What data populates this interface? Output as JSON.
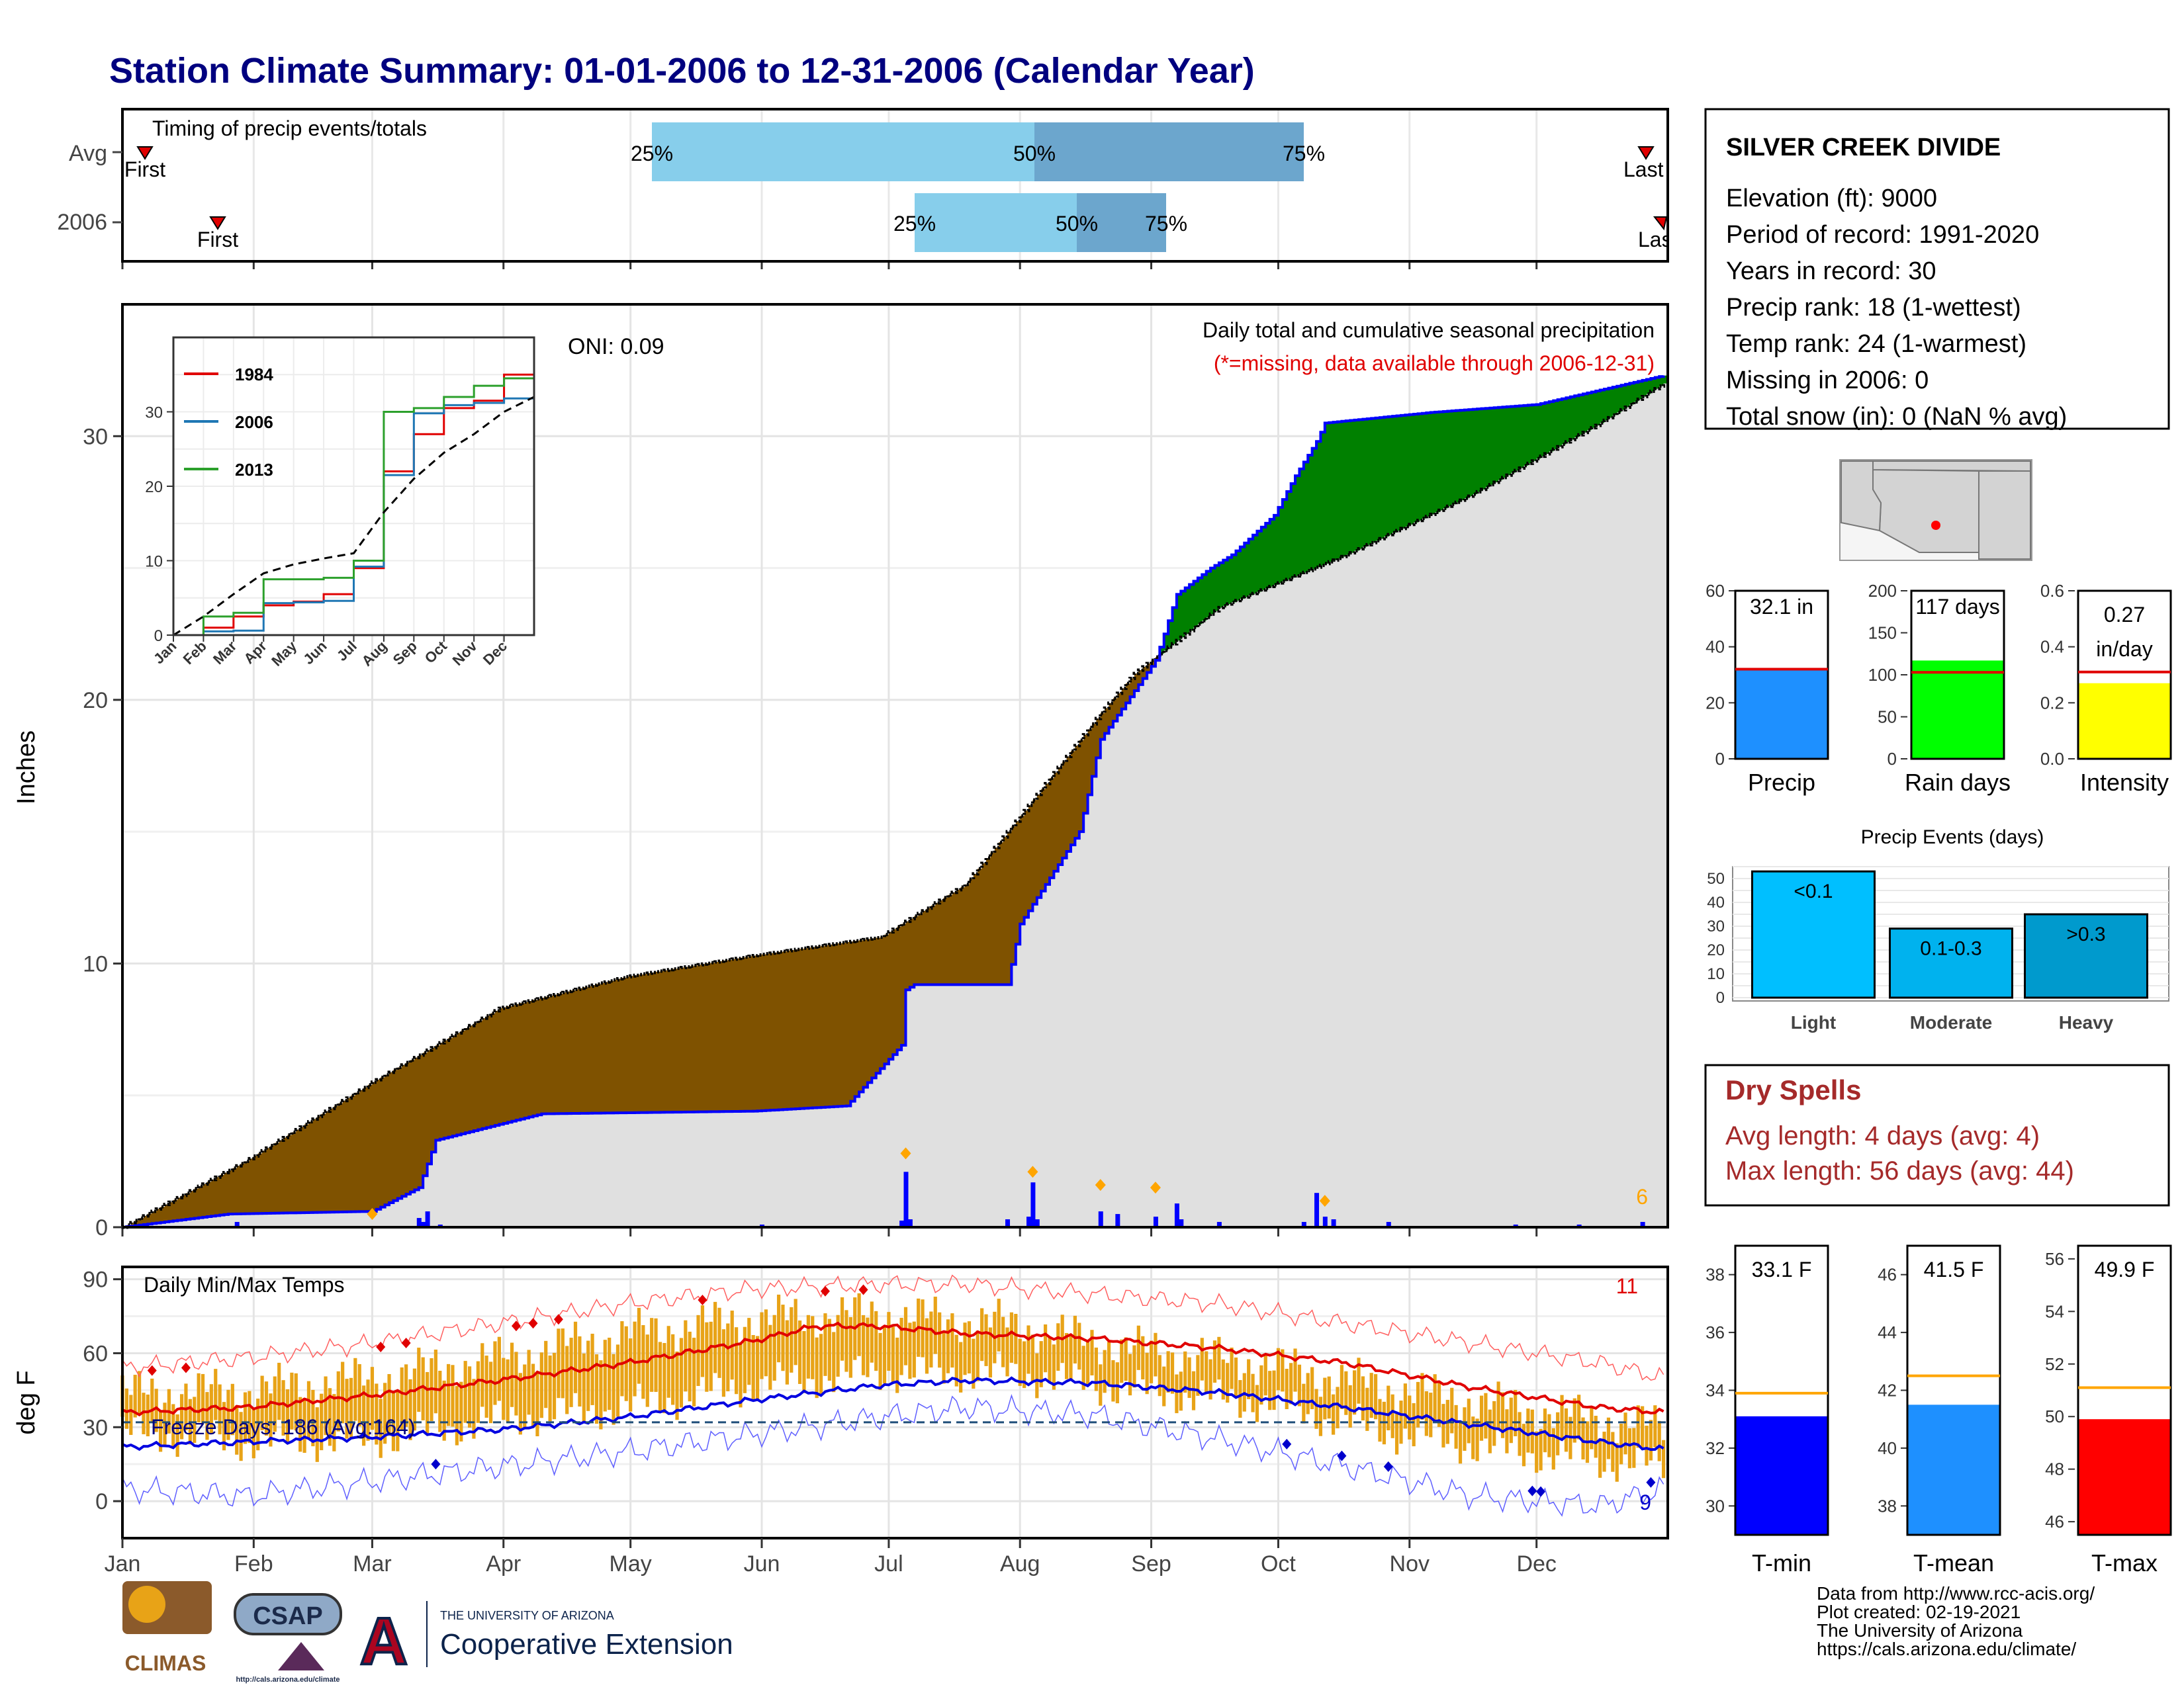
{
  "title": "Station Climate Summary: 01-01-2006 to 12-31-2006 (Calendar Year)",
  "colors": {
    "title": "#00007f",
    "brown": "#7f5200",
    "green": "#008000",
    "blue_line": "#0000ff",
    "light_gray": "#e0e0e0",
    "timing_light": "#87ceeb",
    "timing_dark": "#6ca6cd",
    "orange": "#e8a317",
    "precip_bar": "#1e90ff",
    "raindays_bar": "#00ff00",
    "intensity_bar": "#ffff00",
    "events_light": "#00bfff",
    "events_moderate": "#00b2ee",
    "events_heavy": "#009acd",
    "tmin_bar": "#0000ff",
    "tmean_bar": "#1e90ff",
    "tmax_bar": "#ff0000",
    "dry_spells": "#a52a2a"
  },
  "timing": {
    "title": "Timing of precip events/totals",
    "rows": [
      {
        "label": "Avg",
        "first_label": "First",
        "last_label": "Last",
        "p25": "25%",
        "p50": "50%",
        "p75": "75%"
      },
      {
        "label": "2006",
        "first_label": "First",
        "last_label": "Last",
        "p25": "25%",
        "p50": "50%",
        "p75": "75%"
      }
    ]
  },
  "station": {
    "name": "SILVER CREEK DIVIDE",
    "lines": [
      "Elevation (ft): 9000",
      "Period of record: 1991-2020",
      "Years in record: 30",
      "Precip rank: 18 (1-wettest)",
      "Temp rank: 24 (1-warmest)",
      "Missing in 2006: 0",
      "Total snow (in): 0 (NaN % avg)"
    ]
  },
  "precip_panel": {
    "ylabel": "Inches",
    "oni": "ONI: 0.09",
    "subtitle": "Daily total and cumulative seasonal precipitation",
    "missing_note": "(*=missing, data available through 2006-12-31)",
    "extreme_count": "6",
    "yticks": [
      "0",
      "10",
      "20",
      "30"
    ]
  },
  "inset": {
    "legend": [
      "1984",
      "2006",
      "2013"
    ],
    "yticks": [
      "0",
      "10",
      "20",
      "30"
    ],
    "months": [
      "Jan",
      "Feb",
      "Mar",
      "Apr",
      "May",
      "Jun",
      "Jul",
      "Aug",
      "Sep",
      "Oct",
      "Nov",
      "Dec"
    ]
  },
  "temp_panel": {
    "ylabel": "deg F",
    "title": "Daily Min/Max Temps",
    "freeze": "Freeze Days: 186 (Avg:164)",
    "high_count": "11",
    "low_count": "9",
    "yticks": [
      "0",
      "30",
      "60",
      "90"
    ]
  },
  "months": [
    "Jan",
    "Feb",
    "Mar",
    "Apr",
    "May",
    "Jun",
    "Jul",
    "Aug",
    "Sep",
    "Oct",
    "Nov",
    "Dec"
  ],
  "summary_bars": {
    "precip": {
      "label": "Precip",
      "value_text": "32.1 in",
      "yticks": [
        "0",
        "20",
        "40",
        "60"
      ]
    },
    "raindays": {
      "label": "Rain days",
      "value_text": "117 days",
      "yticks": [
        "0",
        "50",
        "100",
        "150",
        "200"
      ]
    },
    "intensity": {
      "label": "Intensity",
      "value_text_1": "0.27",
      "value_text_2": "in/day",
      "yticks": [
        "0.0",
        "0.2",
        "0.4",
        "0.6"
      ]
    }
  },
  "events": {
    "title": "Precip Events (days)",
    "yticks": [
      "0",
      "10",
      "20",
      "30",
      "40",
      "50"
    ],
    "bars": [
      {
        "name": "Light",
        "label": "<0.1"
      },
      {
        "name": "Moderate",
        "label": "0.1-0.3"
      },
      {
        "name": "Heavy",
        "label": ">0.3"
      }
    ]
  },
  "dry_spells": {
    "title": "Dry Spells",
    "avg": "Avg length: 4 days (avg: 4)",
    "max": "Max length: 56 days (avg: 44)"
  },
  "temp_bars": {
    "tmin": {
      "label": "T-min",
      "value_text": "33.1 F",
      "yticks": [
        "30",
        "32",
        "34",
        "36",
        "38"
      ]
    },
    "tmean": {
      "label": "T-mean",
      "value_text": "41.5 F",
      "yticks": [
        "38",
        "40",
        "42",
        "44",
        "46"
      ]
    },
    "tmax": {
      "label": "T-max",
      "value_text": "49.9 F",
      "yticks": [
        "46",
        "48",
        "50",
        "52",
        "54",
        "56"
      ]
    }
  },
  "logos": {
    "climas": "CLIMAS",
    "csap": "CSAP",
    "csap_url": "http://cals.arizona.edu/climate",
    "ua_small": "THE UNIVERSITY OF ARIZONA",
    "ua_big": "Cooperative Extension"
  },
  "footer": [
    "Data from http://www.rcc-acis.org/",
    "Plot created: 02-19-2021",
    "The University of Arizona",
    "https://cals.arizona.edu/climate/"
  ],
  "chart_data": [
    {
      "type": "area",
      "title": "Daily total and cumulative seasonal precipitation",
      "ylabel": "Inches",
      "ylim": [
        0,
        35
      ],
      "x_unit": "day of year",
      "series": [
        {
          "name": "2006",
          "x": [
            1,
            26,
            60,
            71,
            75,
            100,
            150,
            172,
            185,
            186,
            188,
            210,
            213,
            227,
            232,
            245,
            250,
            258,
            263,
            273,
            278,
            283,
            285,
            310,
            335,
            365
          ],
          "values": [
            0,
            0.5,
            0.6,
            1.5,
            3.3,
            4.3,
            4.4,
            4.6,
            6.9,
            9.0,
            9.2,
            9.2,
            11.5,
            15.0,
            18.5,
            21.5,
            24.0,
            25.0,
            25.5,
            27.0,
            28.5,
            29.8,
            30.5,
            30.9,
            31.2,
            32.3
          ]
        },
        {
          "name": "Avg",
          "x": [
            1,
            30,
            60,
            90,
            120,
            150,
            180,
            200,
            215,
            232,
            240,
            260,
            290,
            320,
            350,
            365
          ],
          "values": [
            0,
            2.5,
            5.5,
            8.3,
            9.5,
            10.3,
            11.0,
            13.0,
            16.0,
            19.5,
            21.0,
            23.5,
            25.5,
            27.8,
            30.5,
            32.0
          ]
        }
      ],
      "daily_totals": {
        "x": [
          5,
          28,
          71,
          72,
          73,
          76,
          152,
          185,
          186,
          187,
          210,
          215,
          216,
          217,
          232,
          236,
          245,
          250,
          251,
          260,
          280,
          283,
          285,
          287,
          300,
          330,
          345,
          360
        ],
        "values": [
          0.1,
          0.2,
          0.35,
          0.2,
          0.6,
          0.1,
          0.1,
          0.25,
          2.1,
          0.3,
          0.3,
          0.4,
          1.7,
          0.3,
          0.6,
          0.5,
          0.4,
          0.9,
          0.3,
          0.2,
          0.2,
          1.3,
          0.4,
          0.3,
          0.2,
          0.1,
          0.1,
          0.2
        ]
      },
      "extreme_days": {
        "x": [
          60,
          186,
          216,
          232,
          245,
          285
        ],
        "values": [
          0.2,
          2.5,
          1.8,
          1.3,
          1.2,
          0.7
        ]
      }
    },
    {
      "type": "line",
      "title": "",
      "x": [
        "Jan",
        "Feb",
        "Mar",
        "Apr",
        "May",
        "Jun",
        "Jul",
        "Aug",
        "Sep",
        "Oct",
        "Nov",
        "Dec",
        "Dec31"
      ],
      "series": [
        {
          "name": "1984",
          "values": [
            0,
            1.0,
            2.5,
            4.0,
            4.5,
            5.5,
            9.0,
            22.0,
            27.0,
            30.5,
            31.5,
            35.0,
            38.0
          ]
        },
        {
          "name": "2006",
          "values": [
            0,
            0.5,
            0.6,
            4.3,
            4.4,
            4.6,
            9.2,
            21.5,
            29.8,
            30.9,
            31.2,
            31.8,
            32.3
          ]
        },
        {
          "name": "2013",
          "values": [
            0,
            2.5,
            3.0,
            7.5,
            7.5,
            7.7,
            10.0,
            30.0,
            30.5,
            32.0,
            33.5,
            34.5,
            35.0
          ]
        },
        {
          "name": "avg",
          "values": [
            0,
            2.5,
            5.5,
            8.3,
            9.5,
            10.3,
            11.0,
            16.5,
            21.0,
            24.5,
            27.0,
            30.0,
            32.0
          ]
        }
      ],
      "ylim": [
        0,
        40
      ]
    },
    {
      "type": "line",
      "title": "Daily Min/Max Temps",
      "ylabel": "deg F",
      "ylim": [
        -15,
        95
      ],
      "x_unit": "day of year",
      "series": [
        {
          "name": "avg max",
          "x": [
            1,
            30,
            60,
            90,
            120,
            150,
            165,
            180,
            200,
            230,
            260,
            290,
            320,
            350,
            365
          ],
          "values": [
            36,
            38,
            43,
            49,
            56,
            65,
            71,
            71,
            68,
            66,
            62,
            56,
            46,
            38,
            36
          ]
        },
        {
          "name": "avg min",
          "x": [
            1,
            30,
            60,
            90,
            120,
            150,
            180,
            200,
            230,
            260,
            290,
            320,
            350,
            365
          ],
          "values": [
            22,
            24,
            26,
            29,
            34,
            41,
            47,
            49,
            48,
            44,
            38,
            31,
            24,
            21
          ]
        },
        {
          "name": "record max",
          "x": [
            1,
            30,
            60,
            90,
            120,
            150,
            180,
            200,
            230,
            260,
            290,
            320,
            350,
            365
          ],
          "values": [
            54,
            58,
            64,
            72,
            80,
            86,
            88,
            88,
            84,
            80,
            72,
            64,
            56,
            50
          ]
        },
        {
          "name": "record min",
          "x": [
            1,
            30,
            60,
            90,
            120,
            150,
            180,
            200,
            230,
            260,
            290,
            320,
            350,
            365
          ],
          "values": [
            5,
            2,
            8,
            14,
            20,
            27,
            34,
            38,
            35,
            25,
            14,
            2,
            -2,
            5
          ]
        }
      ],
      "freeze_line": 32,
      "daily_range": {
        "x": [
          1,
          30,
          60,
          90,
          120,
          150,
          180,
          210,
          240,
          270,
          300,
          330,
          365
        ],
        "low": [
          28,
          24,
          25,
          33,
          38,
          47,
          52,
          52,
          45,
          40,
          28,
          20,
          14
        ],
        "high": [
          44,
          45,
          50,
          58,
          68,
          74,
          76,
          72,
          62,
          56,
          46,
          38,
          30
        ]
      }
    },
    {
      "type": "bar",
      "title": "",
      "categories": [
        "Precip",
        "Rain days",
        "Intensity"
      ],
      "values": [
        32.1,
        117,
        0.27
      ],
      "averages": [
        32,
        103,
        0.31
      ],
      "ylims": [
        [
          0,
          60
        ],
        [
          0,
          200
        ],
        [
          0,
          0.6
        ]
      ]
    },
    {
      "type": "bar",
      "title": "Precip Events (days)",
      "categories": [
        "Light",
        "Moderate",
        "Heavy"
      ],
      "values": [
        53,
        29,
        35
      ],
      "ylim": [
        0,
        55
      ]
    },
    {
      "type": "bar",
      "title": "",
      "categories": [
        "T-min",
        "T-mean",
        "T-max"
      ],
      "values": [
        33.1,
        41.5,
        49.9
      ],
      "averages": [
        33.9,
        42.5,
        51.1
      ],
      "ylims": [
        [
          29,
          39
        ],
        [
          37,
          47
        ],
        [
          45.5,
          56.5
        ]
      ]
    }
  ]
}
